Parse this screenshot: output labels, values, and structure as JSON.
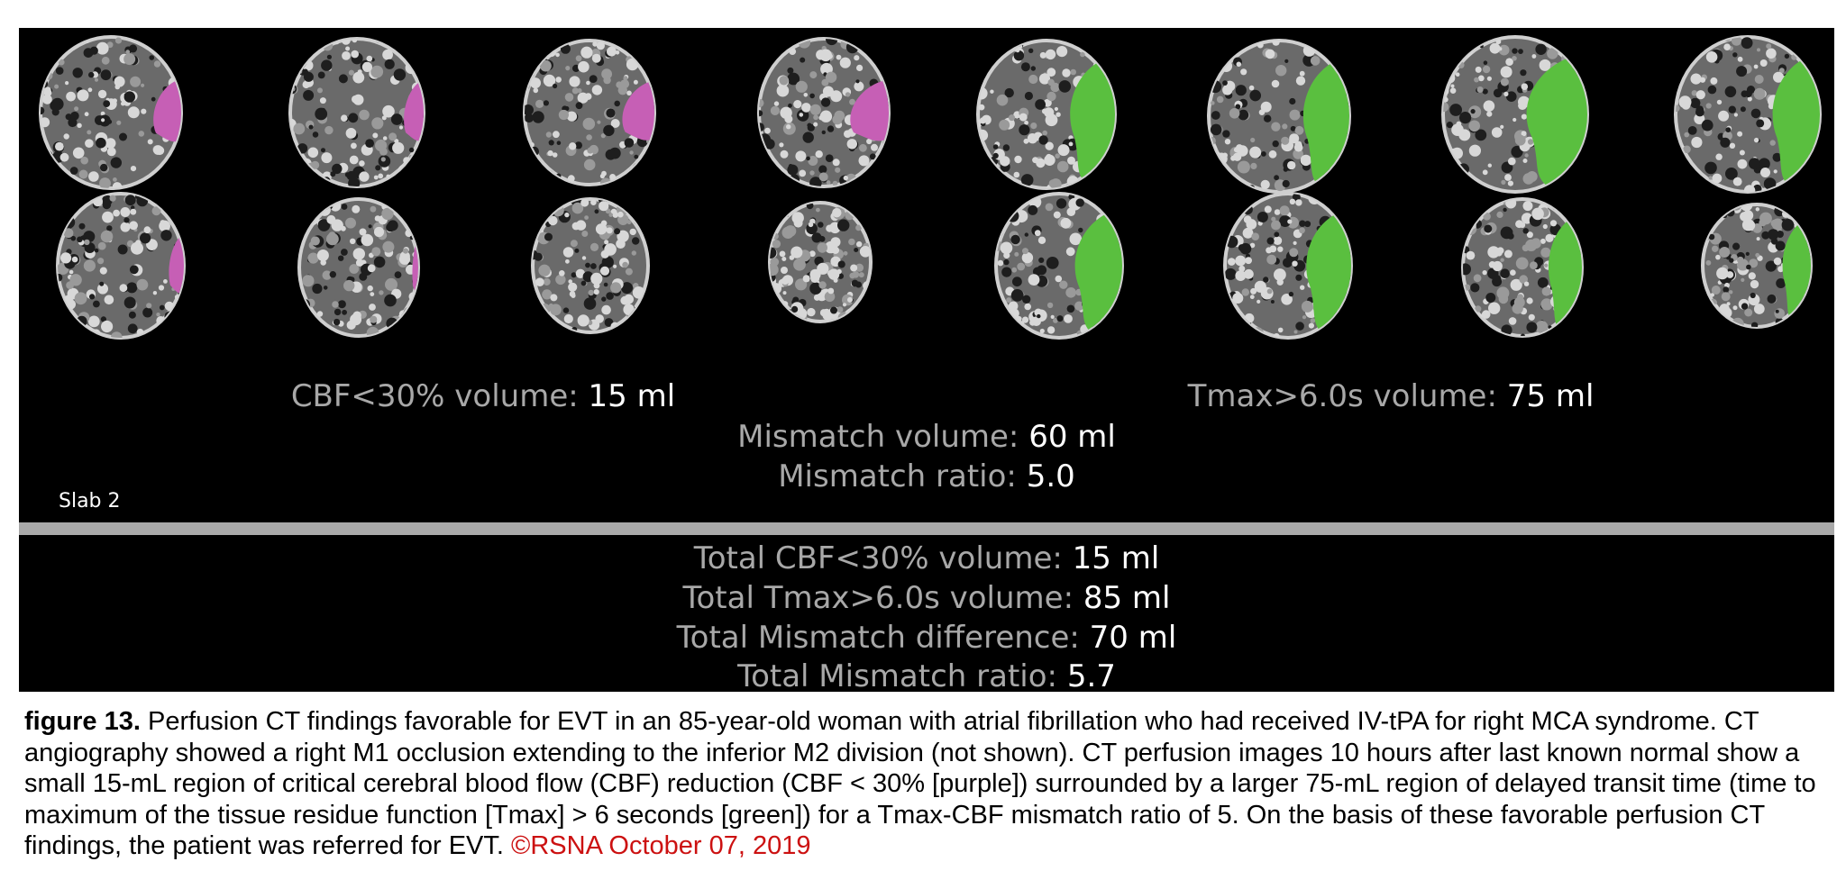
{
  "colors": {
    "panel_background": "#000000",
    "cbf_region": "#c65fb5",
    "tmax_region": "#5abf3f",
    "divider": "#a9a9a9",
    "label_gray": "#a8a8a8",
    "value_white": "#ffffff",
    "copyright_red": "#cc1111"
  },
  "slab": {
    "label": "Slab 2",
    "cbf": {
      "label": "CBF<30% volume:",
      "value": "15 ml"
    },
    "tmax": {
      "label": "Tmax>6.0s volume:",
      "value": "75 ml"
    },
    "mismatch_volume": {
      "label": "Mismatch volume:",
      "value": "60 ml"
    },
    "mismatch_ratio": {
      "label": "Mismatch ratio:",
      "value": "5.0"
    }
  },
  "totals": {
    "cbf": {
      "label": "Total CBF<30% volume:",
      "value": "15 ml"
    },
    "tmax": {
      "label": "Total Tmax>6.0s volume:",
      "value": "85 ml"
    },
    "mismatch_difference": {
      "label": "Total Mismatch difference:",
      "value": "70 ml"
    },
    "mismatch_ratio": {
      "label": "Total Mismatch ratio:",
      "value": "5.7"
    }
  },
  "caption": {
    "figure_label": "figure 13.",
    "text": " Perfusion CT findings favorable for EVT in an 85-year-old woman with atrial fibrillation who had received IV-tPA for right MCA syndrome. CT angiography showed a right M1 occlusion extending to the inferior M2 division (not shown). CT perfusion images 10 hours after last known normal show a small 15-mL region of critical cerebral blood flow (CBF) reduction (CBF < 30% [purple]) surrounded by a larger 75-mL region of delayed transit time (time to maximum of the tissue residue function [Tmax] > 6 seconds [green]) for a Tmax-CBF mismatch ratio of 5. On the basis of these favorable perfusion CT findings, the patient was referred for EVT. ",
    "copyright": "©RSNA October 07, 2019"
  },
  "slices": [
    {
      "map": "CBF",
      "row": 1,
      "lesion_fraction": 0.2
    },
    {
      "map": "CBF",
      "row": 1,
      "lesion_fraction": 0.15
    },
    {
      "map": "CBF",
      "row": 1,
      "lesion_fraction": 0.25
    },
    {
      "map": "CBF",
      "row": 1,
      "lesion_fraction": 0.3
    },
    {
      "map": "Tmax",
      "row": 1,
      "lesion_fraction": 0.35
    },
    {
      "map": "Tmax",
      "row": 1,
      "lesion_fraction": 0.35
    },
    {
      "map": "Tmax",
      "row": 1,
      "lesion_fraction": 0.45
    },
    {
      "map": "Tmax",
      "row": 1,
      "lesion_fraction": 0.35
    },
    {
      "map": "CBF",
      "row": 2,
      "lesion_fraction": 0.12
    },
    {
      "map": "CBF",
      "row": 2,
      "lesion_fraction": 0.05
    },
    {
      "map": "CBF",
      "row": 2,
      "lesion_fraction": 0
    },
    {
      "map": "CBF",
      "row": 2,
      "lesion_fraction": 0
    },
    {
      "map": "Tmax",
      "row": 2,
      "lesion_fraction": 0.4
    },
    {
      "map": "Tmax",
      "row": 2,
      "lesion_fraction": 0.38
    },
    {
      "map": "Tmax",
      "row": 2,
      "lesion_fraction": 0.3
    },
    {
      "map": "Tmax",
      "row": 2,
      "lesion_fraction": 0.28
    }
  ]
}
